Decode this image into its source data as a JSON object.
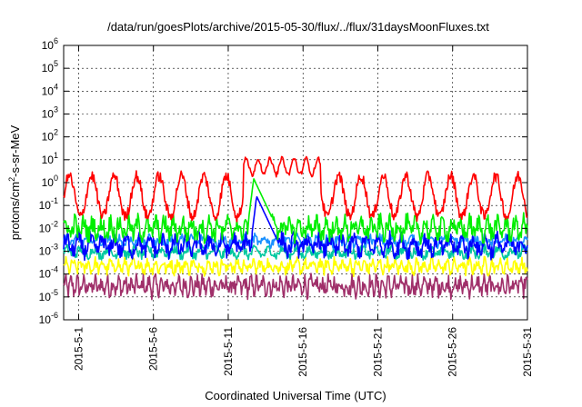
{
  "chart_data": {
    "type": "line",
    "title": "/data/run/goesPlots/archive/2015-05-30/flux/../flux/31daysMoonFluxes.txt",
    "xlabel": "Coordinated Universal Time (UTC)",
    "ylabel_parts": {
      "base": "protons/cm",
      "sup": "2",
      "rest": "-s-sr-MeV"
    },
    "y_scale": "log",
    "ylim_exponents": [
      -6,
      6
    ],
    "y_tick_exponents": [
      -6,
      -5,
      -4,
      -3,
      -2,
      -1,
      0,
      1,
      2,
      3,
      4,
      5,
      6
    ],
    "y_tick_base": "10",
    "xlim_days": [
      "2015-04-30",
      "2015-05-31"
    ],
    "x_tick_labels": [
      {
        "label": "2015-5-1",
        "date": "2015-05-01"
      },
      {
        "label": "2015-5-6",
        "date": "2015-05-06"
      },
      {
        "label": "2015-5-11",
        "date": "2015-05-11"
      },
      {
        "label": "2015-5-16",
        "date": "2015-05-16"
      },
      {
        "label": "2015-5-21",
        "date": "2015-05-21"
      },
      {
        "label": "2015-5-26",
        "date": "2015-05-26"
      },
      {
        "label": "2015-5-31",
        "date": "2015-05-31"
      }
    ],
    "grid": true,
    "legend": false,
    "series": [
      {
        "color": "#ff0000",
        "description": "highest-flux channel, ~0.1 to 10, diurnal oscillation, elevated 12-17 May"
      },
      {
        "color": "#00ee00",
        "description": "~0.003 to 0.05, spike to ~1 on 12-13 May"
      },
      {
        "color": "#0000ff",
        "description": "~0.0005 to 0.01, spike to ~0.3 on 12-13 May"
      },
      {
        "color": "#1a90ff",
        "description": "~0.001 to 0.005"
      },
      {
        "color": "#00c8a0",
        "description": "~0.0005 to 0.002"
      },
      {
        "color": "#ffff00",
        "description": "~0.0001 to 0.0005"
      },
      {
        "color": "#a0306a",
        "description": "~0.00001 to 0.0001"
      }
    ],
    "profiles": {
      "red": {
        "base": 0.25,
        "amp": 0.9,
        "period_days": 1.5,
        "noise": 0.25,
        "event_start": 12.0,
        "event_end": 17.2,
        "event_level": 5.0
      },
      "green": {
        "base": 0.01,
        "amp": 0.3,
        "period_days": 0.6,
        "noise": 0.4,
        "spike_day": 12.7,
        "spike_peak": 1.5
      },
      "blue": {
        "base": 0.0018,
        "amp": 0.3,
        "period_days": 0.8,
        "noise": 0.35,
        "spike_day": 12.9,
        "spike_peak": 0.25
      },
      "azure": {
        "base": 0.0028,
        "amp": 0.15,
        "period_days": 0.7,
        "noise": 0.2
      },
      "teal": {
        "base": 0.0009,
        "amp": 0.15,
        "period_days": 0.9,
        "noise": 0.2
      },
      "yellow": {
        "base": 0.00022,
        "amp": 0.2,
        "period_days": 0.5,
        "noise": 0.25
      },
      "purple": {
        "base": 3e-05,
        "amp": 0.25,
        "period_days": 0.4,
        "noise": 0.35
      }
    }
  }
}
